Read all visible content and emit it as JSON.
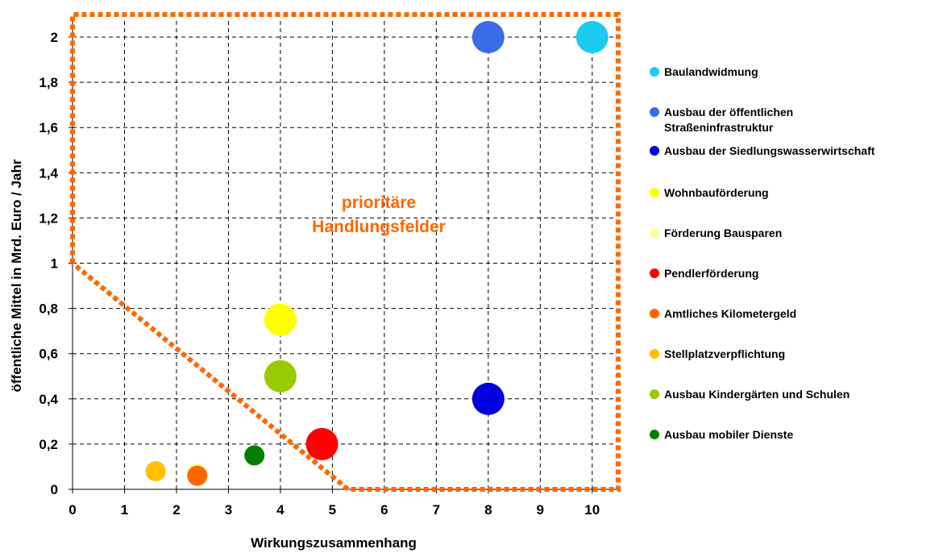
{
  "chart_data": {
    "type": "scatter",
    "xlabel": "Wirkungszusammenhang",
    "ylabel": "öffentliche Mittel in Mrd. Euro / Jahr",
    "xlim": [
      0,
      10.5
    ],
    "ylim": [
      0,
      2.1
    ],
    "x_ticks": [
      "0",
      "1",
      "2",
      "3",
      "4",
      "5",
      "6",
      "7",
      "8",
      "9",
      "10"
    ],
    "y_ticks": [
      "0",
      "0,2",
      "0,4",
      "0,6",
      "0,8",
      "1",
      "1,2",
      "1,4",
      "1,6",
      "1,8",
      "2"
    ],
    "grid": true,
    "legend_position": "right",
    "annotation": "prioritäre\nHandlungsfelder",
    "annotation_color": "#FF6600",
    "region_boundary": {
      "color": "#FF6600",
      "style": "dotted",
      "points": [
        [
          0,
          1
        ],
        [
          0,
          2.1
        ],
        [
          10.5,
          2.1
        ],
        [
          10.5,
          0
        ],
        [
          5.3,
          0
        ],
        [
          0,
          1
        ]
      ]
    },
    "series": [
      {
        "name": "Baulandwidmung",
        "color": "#1ECBF0",
        "x": 10,
        "y": 2.0,
        "size": 3
      },
      {
        "name": "Ausbau der öffentlichen\nStraßeninfrastruktur",
        "color": "#3A6BE8",
        "x": 8,
        "y": 2.0,
        "size": 3
      },
      {
        "name": "Ausbau der Siedlungswasserwirtschaft",
        "color": "#0000DD",
        "x": 8,
        "y": 0.4,
        "size": 3
      },
      {
        "name": "Wohnbauförderung",
        "color": "#FFFF00",
        "x": 4,
        "y": 0.75,
        "size": 3
      },
      {
        "name": "Förderung Bausparen",
        "color": "#FFFF99",
        "x": 2.4,
        "y": 0.07,
        "size": 2
      },
      {
        "name": "Pendlerförderung",
        "color": "#FF0000",
        "x": 4.8,
        "y": 0.2,
        "size": 3
      },
      {
        "name": "Amtliches Kilometergeld",
        "color": "#FF6600",
        "x": 2.4,
        "y": 0.06,
        "size": 2
      },
      {
        "name": "Stellplatzverpflichtung",
        "color": "#FFC000",
        "x": 1.6,
        "y": 0.08,
        "size": 2
      },
      {
        "name": "Ausbau Kindergärten und Schulen",
        "color": "#99CC00",
        "x": 4,
        "y": 0.5,
        "size": 3
      },
      {
        "name": "Ausbau mobiler Dienste",
        "color": "#008000",
        "x": 3.5,
        "y": 0.15,
        "size": 2
      }
    ]
  }
}
